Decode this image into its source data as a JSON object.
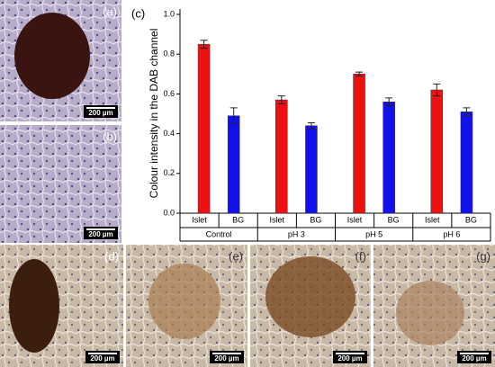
{
  "chart_data": {
    "type": "bar",
    "panel_label": "(c)",
    "ylabel": "Colour intensity in the DAB channel",
    "categories": [
      "Control",
      "pH 3",
      "pH 5",
      "pH 6"
    ],
    "series": [
      {
        "name": "Islet",
        "color": "#ee1111",
        "values": [
          0.85,
          0.57,
          0.7,
          0.62
        ],
        "errors": [
          0.02,
          0.02,
          0.01,
          0.03
        ]
      },
      {
        "name": "BG",
        "color": "#1111ee",
        "values": [
          0.49,
          0.44,
          0.56,
          0.51
        ],
        "errors": [
          0.04,
          0.015,
          0.02,
          0.02
        ]
      }
    ],
    "ylim": [
      0,
      1.0
    ],
    "yticks": [
      {
        "value": 0,
        "label": "0.0"
      },
      {
        "value": 0.2,
        "label": "0.2"
      },
      {
        "value": 0.4,
        "label": "0.4"
      },
      {
        "value": 0.6,
        "label": "0.6"
      },
      {
        "value": 0.8,
        "label": "0.8"
      },
      {
        "value": 1.0,
        "label": "1.0"
      }
    ]
  },
  "panels": [
    {
      "label": "(a)",
      "scale": "200 µm"
    },
    {
      "label": "(b)",
      "scale": "200 µm"
    },
    {
      "label": "(d)",
      "scale": "200 µm"
    },
    {
      "label": "(e)",
      "scale": "200 µm"
    },
    {
      "label": "(f)",
      "scale": "200 µm"
    },
    {
      "label": "(g)",
      "scale": "200 µm"
    }
  ]
}
